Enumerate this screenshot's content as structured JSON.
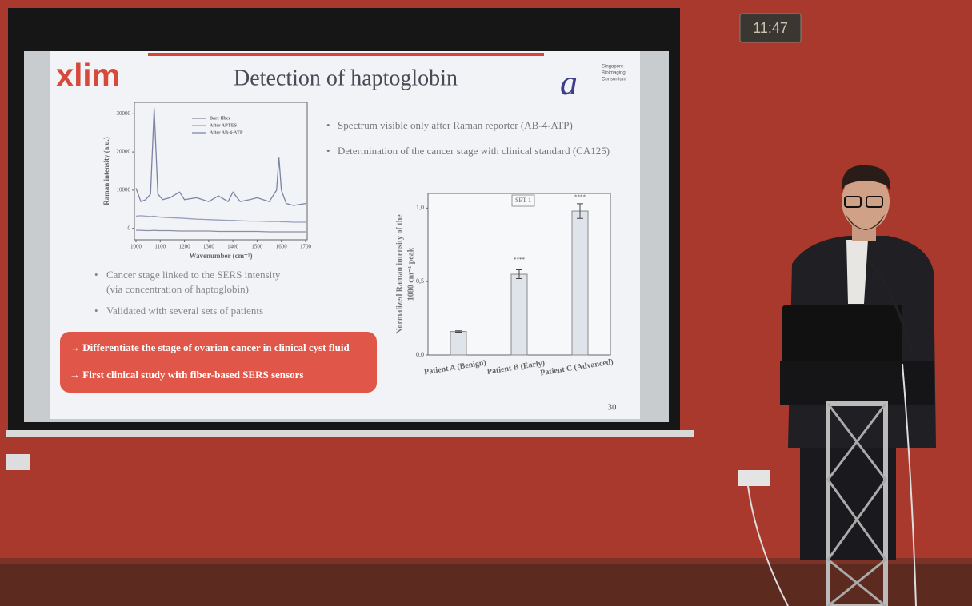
{
  "clock": "11:47",
  "slide": {
    "logo_left": "xlim",
    "logo_right": [
      "Singapore",
      "Bioimaging",
      "Consortium"
    ],
    "title": "Detection of haptoglobin",
    "bullets_right": [
      "Spectrum visible only after Raman reporter (AB-4-ATP)",
      "Determination of the cancer stage with clinical standard (CA125)"
    ],
    "bullets_left": [
      "Cancer stage linked to the SERS intensity",
      "(via concentration of haptoglobin)",
      "Validated with several sets of patients"
    ],
    "highlight": [
      "→ Differentiate the stage of ovarian cancer in clinical cyst fluid",
      "→ First clinical study with fiber-based SERS sensors"
    ],
    "page_number": "30",
    "spectrum": {
      "type": "line",
      "y_label": "Raman intensity (a.u.)",
      "x_label": "Wavenumber (cm⁻¹)",
      "x": [
        1000,
        1020,
        1040,
        1060,
        1075,
        1090,
        1110,
        1140,
        1180,
        1200,
        1250,
        1300,
        1340,
        1380,
        1400,
        1430,
        1470,
        1500,
        1550,
        1580,
        1590,
        1600,
        1620,
        1650,
        1700
      ],
      "xlim": [
        1000,
        1700
      ],
      "xticks": [
        1000,
        1100,
        1200,
        1300,
        1400,
        1500,
        1600,
        1700
      ],
      "ylim": [
        -3000,
        33000
      ],
      "yticks": [
        0,
        10000,
        20000,
        30000
      ],
      "series": [
        {
          "name": "Bare fiber",
          "color": "#8a8fa8",
          "values": [
            -500,
            -500,
            -600,
            -600,
            -500,
            -600,
            -600,
            -600,
            -700,
            -700,
            -700,
            -700,
            -800,
            -800,
            -800,
            -800,
            -800,
            -800,
            -900,
            -900,
            -900,
            -900,
            -900,
            -900,
            -900
          ]
        },
        {
          "name": "After APTES",
          "color": "#9a9fbf",
          "values": [
            3200,
            3300,
            3200,
            3100,
            3200,
            3000,
            2900,
            2800,
            2700,
            2600,
            2400,
            2300,
            2200,
            2100,
            2100,
            2000,
            1900,
            1900,
            1800,
            1800,
            1800,
            1700,
            1700,
            1600,
            1600
          ]
        },
        {
          "name": "After AB-4-ATP",
          "color": "#7d83a6",
          "values": [
            10500,
            7000,
            7500,
            9000,
            31500,
            9000,
            7500,
            8000,
            9500,
            7500,
            8000,
            7000,
            8500,
            7000,
            9500,
            7000,
            7500,
            8000,
            7000,
            10000,
            18500,
            10000,
            6500,
            6000,
            6500
          ]
        }
      ]
    },
    "bars": {
      "type": "bar",
      "annotation": "SET 1",
      "y_label": [
        "Normalized Raman intensity of the",
        "1080 cm⁻¹ peak"
      ],
      "categories": [
        "Patient A (Benign)",
        "Patient B (Early)",
        "Patient C (Advanced)"
      ],
      "values": [
        0.16,
        0.55,
        0.98
      ],
      "errors": [
        0.005,
        0.03,
        0.05
      ],
      "significance": [
        null,
        "****",
        "****"
      ],
      "color": "#dfe4ea",
      "ylim": [
        0,
        1.1
      ],
      "yticks": [
        {
          "value": 0,
          "label": "0,0"
        },
        {
          "value": 0.5,
          "label": "0,5"
        },
        {
          "value": 1,
          "label": "1,0"
        }
      ]
    }
  }
}
